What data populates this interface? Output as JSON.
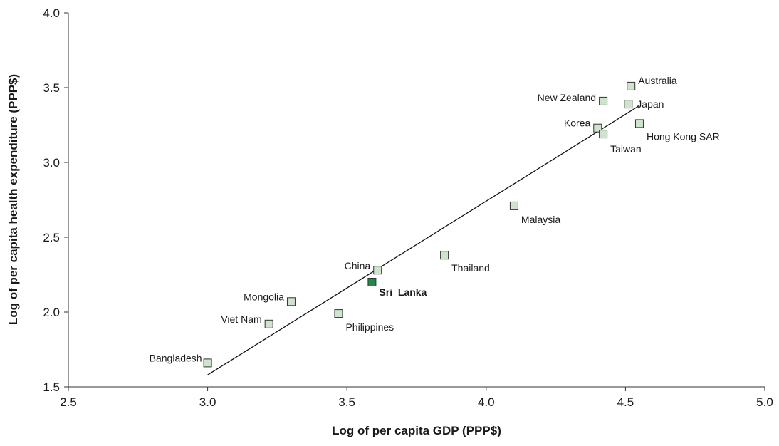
{
  "chart_data": {
    "type": "scatter",
    "xlabel": "Log of per capita GDP (PPP$)",
    "ylabel": "Log of per capita health expenditure (PPP$)",
    "xlim": [
      2.5,
      5.0
    ],
    "ylim": [
      1.5,
      4.0
    ],
    "xticks": [
      "2.5",
      "3.0",
      "3.5",
      "4.0",
      "4.5",
      "5.0"
    ],
    "yticks": [
      "1.5",
      "2.0",
      "2.5",
      "3.0",
      "3.5",
      "4.0"
    ],
    "grid": false,
    "colors": {
      "point": "#cfe3cf",
      "highlight": "#1e8a44",
      "stroke": "#333333"
    },
    "trendline": {
      "x": [
        3.0,
        4.55
      ],
      "y": [
        1.58,
        3.38
      ]
    },
    "points": [
      {
        "label": "Bangladesh",
        "x": 3.0,
        "y": 1.66,
        "highlight": false
      },
      {
        "label": "Viet Nam",
        "x": 3.22,
        "y": 1.92,
        "highlight": false
      },
      {
        "label": "Mongolia",
        "x": 3.3,
        "y": 2.07,
        "highlight": false
      },
      {
        "label": "Philippines",
        "x": 3.47,
        "y": 1.99,
        "highlight": false
      },
      {
        "label": "Sri  Lanka",
        "x": 3.59,
        "y": 2.2,
        "highlight": true
      },
      {
        "label": "China",
        "x": 3.61,
        "y": 2.28,
        "highlight": false
      },
      {
        "label": "Thailand",
        "x": 3.85,
        "y": 2.38,
        "highlight": false
      },
      {
        "label": "Malaysia",
        "x": 4.1,
        "y": 2.71,
        "highlight": false
      },
      {
        "label": "Korea",
        "x": 4.4,
        "y": 3.23,
        "highlight": false
      },
      {
        "label": "Taiwan",
        "x": 4.42,
        "y": 3.19,
        "highlight": false
      },
      {
        "label": "New Zealand",
        "x": 4.42,
        "y": 3.41,
        "highlight": false
      },
      {
        "label": "Japan",
        "x": 4.51,
        "y": 3.39,
        "highlight": false
      },
      {
        "label": "Australia",
        "x": 4.52,
        "y": 3.51,
        "highlight": false
      },
      {
        "label": "Hong Kong SAR",
        "x": 4.55,
        "y": 3.26,
        "highlight": false
      }
    ]
  }
}
